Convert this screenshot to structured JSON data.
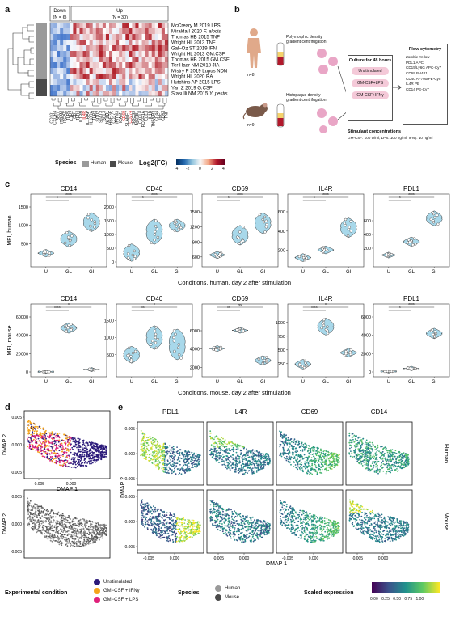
{
  "panel_letters": [
    "a",
    "b",
    "c",
    "d",
    "e"
  ],
  "panel_a": {
    "group_down": "Down\n(N = 6)",
    "group_down_label": "Down",
    "group_down_n": "(N = 6)",
    "group_up_label": "Up",
    "group_up_n": "(N = 30)",
    "studies": [
      {
        "prefix": "McCreary M 2019 LPS",
        "italic": ""
      },
      {
        "prefix": "Miralda I 2020 ",
        "italic": "F. alocis"
      },
      {
        "prefix": "Thomas HB 2015 TNF",
        "italic": ""
      },
      {
        "prefix": "Wright HL 2013 TNF",
        "italic": ""
      },
      {
        "prefix": "Gal–Oz ST 2019 IFN",
        "italic": ""
      },
      {
        "prefix": "Wright HL 2013 GM.CSF",
        "italic": ""
      },
      {
        "prefix": "Thomas HB 2015 GM.CSF",
        "italic": ""
      },
      {
        "prefix": "Ter Haar NM 2018 JIA",
        "italic": ""
      },
      {
        "prefix": "Mistry P 2019 Lupus NDN",
        "italic": ""
      },
      {
        "prefix": "Wright HL 2020 RA",
        "italic": ""
      },
      {
        "prefix": "Hutchins AP 2015 LPS",
        "italic": ""
      },
      {
        "prefix": "Yan Z 2019 G.CSF",
        "italic": ""
      },
      {
        "prefix": "Stasulli NM 2015 ",
        "italic": "Y. pestis"
      }
    ],
    "species_per_row": [
      "Human",
      "Human",
      "Human",
      "Human",
      "Human",
      "Human",
      "Human",
      "Human",
      "Human",
      "Human",
      "Mouse",
      "Mouse",
      "Mouse"
    ],
    "genes": [
      "CD101",
      "CXCR4",
      "SELL",
      "ITGAM",
      "ITGAX",
      "TLR5",
      "IL1R2",
      "CD1",
      "TLR4",
      "IL1RN",
      "IL4R",
      "IL1RAP",
      "IL13RA",
      "TLR2",
      "SOD2",
      "STAT3",
      "BCL3",
      "NFKB1",
      "HBEGF",
      "CD177",
      "IFITM3",
      "ICAM1",
      "CD69",
      "SLAMF7",
      "CD274",
      "SOCS3",
      "MSRB1",
      "CXCL8",
      "FCGR1A",
      "CCL3",
      "IL1B",
      "TNFAIP3",
      "CD44",
      "IRF1",
      "CD83",
      "TNF"
    ],
    "red_genes": [
      "IL4R",
      "CD69",
      "CD274",
      "CD14",
      "CD40"
    ],
    "legend_species_title": "Species",
    "legend_human": "Human",
    "legend_mouse": "Mouse",
    "legend_fc_title": "Log2(FC)",
    "fc_ticks": [
      "-4",
      "-2",
      "0",
      "2",
      "4"
    ]
  },
  "panel_b": {
    "human_n": "n=8",
    "mouse_n": "n=9",
    "human_method": "Polymorphic density gradient centrifugation",
    "mouse_method": "Histopaque density gradient centrifugation",
    "culture_title": "Culture for 48 hours",
    "conditions": [
      "Unstimulated",
      "GM-CSF+LPS",
      "GM-CSF+IFNγ"
    ],
    "flow_title": "Flow cytometry",
    "flow_markers": [
      "Zombie Yellow",
      "PDL1 APC",
      "CD15/Ly6G APC-Cy7",
      "CD69 BV421",
      "CD40 AF700/PE-Cy5",
      "IL4R PE",
      "CD14 PE-Cy7"
    ],
    "stim_title": "Stimulant concentrations",
    "stim_text": "GM-CSF: 100 U/ml, LPS: 100 ng/ml, IFNγ: 10 ng/ml"
  },
  "panel_c": {
    "human_ylabel": "MFI, human",
    "mouse_ylabel": "MFI, mouse",
    "human_xlabel": "Conditions, human, day 2 after stimulation",
    "mouse_xlabel": "Conditions, mouse, day 2 after stimulation",
    "conditions": [
      "U",
      "GL",
      "GI"
    ]
  },
  "chart_data": [
    {
      "type": "violin",
      "title": "CD14",
      "species": "human",
      "categories": [
        "U",
        "GL",
        "GI"
      ],
      "values": [
        [
          220,
          250,
          180,
          300,
          260,
          210,
          240,
          270
        ],
        [
          450,
          520,
          640,
          710,
          800,
          600,
          580,
          680
        ],
        [
          950,
          1050,
          1200,
          870,
          1100,
          1300,
          980,
          1150
        ]
      ],
      "yticks": [
        "500",
        "1000",
        "1500"
      ],
      "ylim": [
        0,
        1500
      ],
      "sig": [
        "*",
        "****"
      ]
    },
    {
      "type": "violin",
      "title": "CD40",
      "species": "human",
      "categories": [
        "U",
        "GL",
        "GI"
      ],
      "values": [
        [
          120,
          300,
          80,
          600,
          200,
          150,
          400,
          250
        ],
        [
          700,
          900,
          1200,
          1500,
          1100,
          800,
          1000,
          1300
        ],
        [
          1300,
          1350,
          1450,
          1150,
          1400,
          1250,
          1500,
          1200
        ]
      ],
      "yticks": [
        "0",
        "500",
        "1000",
        "1500",
        "2000"
      ],
      "ylim": [
        0,
        2000
      ],
      "sig": [
        "*",
        "****"
      ]
    },
    {
      "type": "violin",
      "title": "CD69",
      "species": "human",
      "categories": [
        "U",
        "GL",
        "GI"
      ],
      "values": [
        [
          620,
          640,
          600,
          680,
          650,
          610,
          630,
          660
        ],
        [
          900,
          950,
          1000,
          1100,
          920,
          980,
          870,
          1200
        ],
        [
          1200,
          1300,
          1400,
          1250,
          1350,
          1100,
          1450,
          1320
        ]
      ],
      "yticks": [
        "600",
        "900",
        "1200",
        "1500"
      ],
      "ylim": [
        500,
        1600
      ],
      "sig": [
        "*",
        "****"
      ]
    },
    {
      "type": "violin",
      "title": "IL4R",
      "species": "human",
      "categories": [
        "U",
        "GL",
        "GI"
      ],
      "values": [
        [
          110,
          130,
          120,
          150,
          140,
          100,
          125,
          135
        ],
        [
          180,
          200,
          210,
          220,
          190,
          230,
          205,
          215
        ],
        [
          350,
          420,
          460,
          500,
          400,
          440,
          480,
          520
        ]
      ],
      "yticks": [
        "200",
        "400",
        "600"
      ],
      "ylim": [
        80,
        650
      ],
      "sig": [
        "*",
        "****"
      ]
    },
    {
      "type": "violin",
      "title": "PDL1",
      "species": "human",
      "categories": [
        "U",
        "GL",
        "GI"
      ],
      "values": [
        [
          80,
          100,
          90,
          120,
          110,
          95,
          105,
          115
        ],
        [
          250,
          300,
          340,
          280,
          310,
          260,
          320,
          290
        ],
        [
          550,
          600,
          700,
          650,
          620,
          580,
          680,
          720
        ]
      ],
      "yticks": [
        "200",
        "400",
        "600"
      ],
      "ylim": [
        0,
        800
      ],
      "sig": [
        "*",
        "****"
      ]
    },
    {
      "type": "violin",
      "title": "CD14",
      "species": "mouse",
      "categories": [
        "U",
        "GL",
        "GI"
      ],
      "values": [
        [
          200,
          300,
          150,
          250,
          180,
          220,
          260,
          240,
          210
        ],
        [
          45000,
          48000,
          50000,
          47000,
          52000,
          46000,
          49000,
          51000,
          44000
        ],
        [
          2000,
          3000,
          2500,
          2200,
          2800,
          3200,
          2600,
          2400,
          2100
        ]
      ],
      "yticks": [
        "0",
        "20000",
        "40000",
        "60000"
      ],
      "ylim": [
        0,
        60000
      ],
      "sig": [
        "****",
        "*"
      ]
    },
    {
      "type": "violin",
      "title": "CD40",
      "species": "mouse",
      "categories": [
        "U",
        "GL",
        "GI"
      ],
      "values": [
        [
          300,
          450,
          600,
          500,
          350,
          700,
          400,
          550,
          480
        ],
        [
          700,
          900,
          1200,
          1100,
          800,
          1000,
          950,
          1300,
          850
        ],
        [
          400,
          900,
          1200,
          600,
          800,
          1000,
          700,
          500,
          1100
        ]
      ],
      "yticks": [
        "500",
        "1000",
        "1500"
      ],
      "ylim": [
        0,
        1600
      ],
      "sig": [
        "**",
        "*"
      ]
    },
    {
      "type": "violin",
      "title": "CD69",
      "species": "mouse",
      "categories": [
        "U",
        "GL",
        "GI"
      ],
      "values": [
        [
          4000,
          4100,
          3900,
          4200,
          4050,
          3950,
          4150,
          4000,
          4100
        ],
        [
          6000,
          6100,
          5900,
          6200,
          6050,
          5950,
          6150,
          6000,
          6100
        ],
        [
          2500,
          2800,
          3000,
          2600,
          2900,
          2700,
          2400,
          3100,
          2750
        ]
      ],
      "yticks": [
        "2000",
        "4000",
        "6000"
      ],
      "ylim": [
        1500,
        7500
      ],
      "sig": [
        "**",
        "ns"
      ]
    },
    {
      "type": "violin",
      "title": "IL4R",
      "species": "mouse",
      "categories": [
        "U",
        "GL",
        "GI"
      ],
      "values": [
        [
          200,
          250,
          180,
          300,
          220,
          260,
          210,
          240,
          230
        ],
        [
          800,
          900,
          1000,
          950,
          850,
          1050,
          920,
          980,
          870
        ],
        [
          400,
          450,
          500,
          420,
          480,
          460,
          440,
          470,
          430
        ]
      ],
      "yticks": [
        "250",
        "500",
        "750",
        "1000"
      ],
      "ylim": [
        100,
        1100
      ],
      "sig": [
        "****",
        "*"
      ]
    },
    {
      "type": "violin",
      "title": "PDL1",
      "species": "mouse",
      "categories": [
        "U",
        "GL",
        "GI"
      ],
      "values": [
        [
          50,
          60,
          40,
          70,
          55,
          45,
          65,
          50,
          60
        ],
        [
          350,
          400,
          300,
          450,
          380,
          420,
          360,
          410,
          390
        ],
        [
          3800,
          4200,
          4500,
          4000,
          4300,
          3900,
          4600,
          4100,
          4400
        ]
      ],
      "yticks": [
        "0",
        "2000",
        "4000",
        "6000"
      ],
      "ylim": [
        0,
        6000
      ],
      "sig": [
        "*",
        "****"
      ]
    }
  ],
  "panel_d": {
    "xlabel": "DMAP 1",
    "ylabel": "DMAP 2",
    "xticks": [
      "-0.005",
      "0.000"
    ],
    "yticks": [
      "0.005",
      "0.000",
      "-0.005"
    ]
  },
  "panel_e": {
    "markers": [
      "PDL1",
      "IL4R",
      "CD69",
      "CD14"
    ],
    "row_labels": [
      "Human",
      "Mouse"
    ],
    "xlabel": "DMAP 1",
    "ylabel": "DMAP 2",
    "xticks": [
      "-0.005",
      "0.000"
    ],
    "yticks": [
      "0.005",
      "0.000",
      "-0.005"
    ]
  },
  "bottom_legend": {
    "exp_title": "Experimental condition",
    "exp_items": [
      {
        "label": "Unstimulated",
        "color": "#2b1a7a"
      },
      {
        "label": "GM−CSF + IFNγ",
        "color": "#f5a41a"
      },
      {
        "label": "GM−CSF + LPS",
        "color": "#e0207a"
      }
    ],
    "species_title": "Species",
    "species_items": [
      {
        "label": "Human",
        "color": "#9a9a9a"
      },
      {
        "label": "Mouse",
        "color": "#4a4a4a"
      }
    ],
    "scaled_title": "Scaled expression",
    "scaled_ticks": "0.00 0.25 0.50 0.75 1.00"
  },
  "colors": {
    "violin_fill": "#a8d8ea",
    "heat_red": "#b2182b",
    "heat_blue": "#2166ac",
    "human_gray": "#9a9a9a",
    "mouse_gray": "#4a4a4a"
  }
}
